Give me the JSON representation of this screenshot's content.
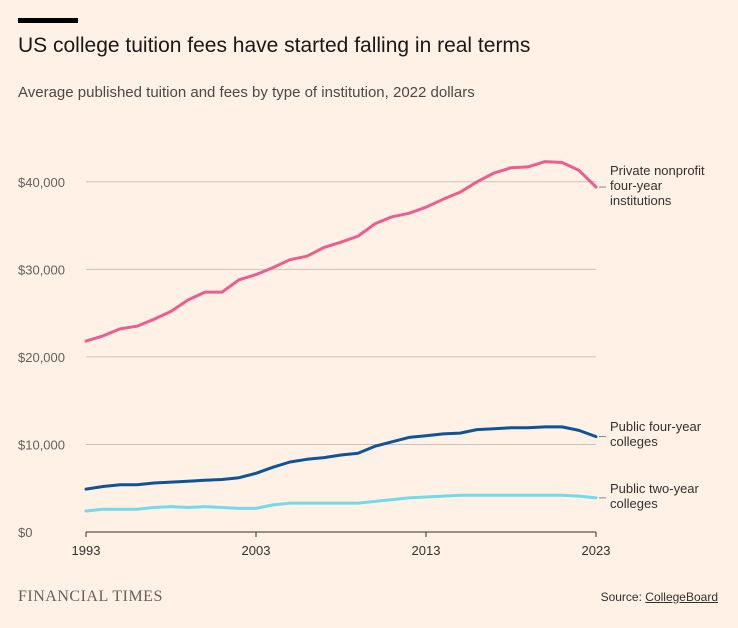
{
  "header": {
    "title": "US college tuition fees have started falling in real terms",
    "subtitle": "Average published tuition and fees by type of institution, 2022 dollars"
  },
  "footer": {
    "brand": "FINANCIAL TIMES",
    "source_prefix": "Source: ",
    "source_link": "CollegeBoard"
  },
  "chart_data": {
    "type": "line",
    "title": "US college tuition fees have started falling in real terms",
    "subtitle": "Average published tuition and fees by type of institution, 2022 dollars",
    "xlabel": "",
    "ylabel": "",
    "xlim": [
      1993,
      2023
    ],
    "ylim": [
      0,
      45000
    ],
    "xticks": [
      1993,
      2003,
      2013,
      2023
    ],
    "xtick_labels": [
      "1993",
      "2003",
      "2013",
      "2023"
    ],
    "yticks": [
      0,
      10000,
      20000,
      30000,
      40000
    ],
    "ytick_labels": [
      "$0",
      "$10,000",
      "$20,000",
      "$30,000",
      "$40,000"
    ],
    "grid": true,
    "x": [
      1993,
      1994,
      1995,
      1996,
      1997,
      1998,
      1999,
      2000,
      2001,
      2002,
      2003,
      2004,
      2005,
      2006,
      2007,
      2008,
      2009,
      2010,
      2011,
      2012,
      2013,
      2014,
      2015,
      2016,
      2017,
      2018,
      2019,
      2020,
      2021,
      2022,
      2023
    ],
    "series": [
      {
        "name": "Private nonprofit four-year institutions",
        "label_lines": [
          "Private nonprofit",
          "four-year",
          "institutions"
        ],
        "color": "#eb5e8d",
        "values": [
          21800,
          22400,
          23200,
          23500,
          24300,
          25200,
          26500,
          27400,
          27400,
          28800,
          29400,
          30200,
          31100,
          31500,
          32500,
          33100,
          33800,
          35200,
          36000,
          36400,
          37100,
          38000,
          38800,
          40000,
          41000,
          41600,
          41700,
          42300,
          42200,
          41300,
          39400
        ]
      },
      {
        "name": "Public four-year colleges",
        "label_lines": [
          "Public four-year",
          "colleges"
        ],
        "color": "#0f5499",
        "values": [
          4900,
          5200,
          5400,
          5400,
          5600,
          5700,
          5800,
          5900,
          6000,
          6200,
          6700,
          7400,
          8000,
          8300,
          8500,
          8800,
          9000,
          9800,
          10300,
          10800,
          11000,
          11200,
          11300,
          11700,
          11800,
          11900,
          11900,
          12000,
          12000,
          11600,
          10900
        ]
      },
      {
        "name": "Public two-year colleges",
        "label_lines": [
          "Public two-year",
          "colleges"
        ],
        "color": "#72dbea",
        "values": [
          2400,
          2600,
          2600,
          2600,
          2800,
          2900,
          2800,
          2900,
          2800,
          2700,
          2700,
          3100,
          3300,
          3300,
          3300,
          3300,
          3300,
          3500,
          3700,
          3900,
          4000,
          4100,
          4200,
          4200,
          4200,
          4200,
          4200,
          4200,
          4200,
          4100,
          3900
        ]
      }
    ]
  }
}
